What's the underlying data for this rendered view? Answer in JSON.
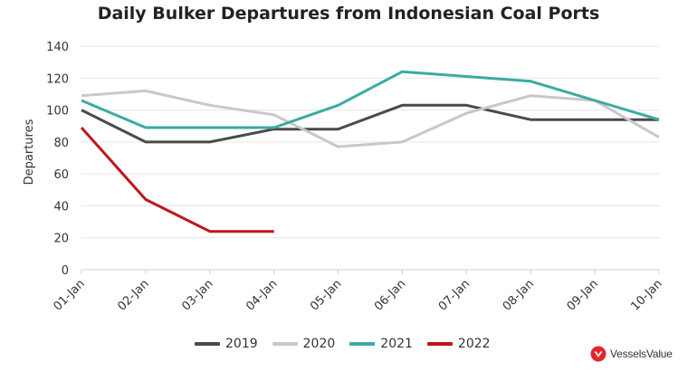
{
  "chart_data": {
    "type": "line",
    "title": "Daily Bulker Departures from Indonesian Coal Ports",
    "xlabel": "",
    "ylabel": "Departures",
    "categories": [
      "01-Jan",
      "02-Jan",
      "03-Jan",
      "04-Jan",
      "05-Jan",
      "06-Jan",
      "07-Jan",
      "08-Jan",
      "09-Jan",
      "10-Jan"
    ],
    "ylim": [
      0,
      140
    ],
    "yticks": [
      0,
      20,
      40,
      60,
      80,
      100,
      120,
      140
    ],
    "grid": true,
    "legend_position": "bottom",
    "series": [
      {
        "name": "2019",
        "color": "#4a4a4a",
        "values": [
          100,
          80,
          80,
          88,
          88,
          103,
          103,
          94,
          94,
          94
        ]
      },
      {
        "name": "2020",
        "color": "#c8c8c8",
        "values": [
          109,
          112,
          103,
          97,
          77,
          80,
          98,
          109,
          106,
          83
        ]
      },
      {
        "name": "2021",
        "color": "#3aaba3",
        "values": [
          106,
          89,
          89,
          89,
          103,
          124,
          121,
          118,
          106,
          94
        ]
      },
      {
        "name": "2022",
        "color": "#c0161c",
        "values": [
          89,
          44,
          24,
          24,
          null,
          null,
          null,
          null,
          null,
          null
        ]
      }
    ]
  },
  "brand": {
    "name": "VesselsValue",
    "color": "#e2262a",
    "icon": "vesselsvalue-logo-icon"
  }
}
